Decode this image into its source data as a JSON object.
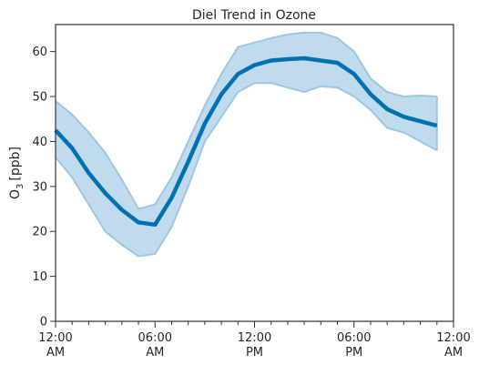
{
  "chart_data": {
    "type": "line",
    "title": "Diel Trend in Ozone",
    "ylabel": "O",
    "ylabel_sub": "3",
    "ylabel_unit": "[ppb]",
    "xlabel": "",
    "ylim": [
      0,
      66
    ],
    "xlim": [
      0,
      24
    ],
    "grid": false,
    "legend": "none",
    "yticks": [
      0,
      10,
      20,
      30,
      40,
      50,
      60
    ],
    "xticks": [
      {
        "x": 0,
        "line1": "12:00",
        "line2": "AM"
      },
      {
        "x": 6,
        "line1": "06:00",
        "line2": "AM"
      },
      {
        "x": 12,
        "line1": "12:00",
        "line2": "PM"
      },
      {
        "x": 18,
        "line1": "06:00",
        "line2": "PM"
      },
      {
        "x": 24,
        "line1": "12:00",
        "line2": "AM"
      }
    ],
    "minor_xticks": [
      1,
      2,
      3,
      4,
      5,
      7,
      8,
      9,
      10,
      11,
      13,
      14,
      15,
      16,
      17,
      19,
      20,
      21,
      22,
      23
    ],
    "x": [
      0,
      1,
      2,
      3,
      4,
      5,
      6,
      7,
      8,
      9,
      10,
      11,
      12,
      13,
      14,
      15,
      16,
      17,
      18,
      19,
      20,
      21,
      22,
      23
    ],
    "series": [
      {
        "values": [
          42.5,
          38.5,
          33.0,
          28.5,
          24.8,
          22.0,
          21.5,
          27.5,
          35.5,
          44.0,
          50.5,
          55.0,
          57.0,
          58.0,
          58.3,
          58.5,
          58.0,
          57.5,
          55.0,
          50.5,
          47.2,
          45.5,
          44.5,
          43.5
        ],
        "lower": [
          36.5,
          32.0,
          26.0,
          20.0,
          17.0,
          14.5,
          15.0,
          21.0,
          30.0,
          40.0,
          45.5,
          51.0,
          53.0,
          53.0,
          52.0,
          51.0,
          52.3,
          52.0,
          50.0,
          47.0,
          43.0,
          42.0,
          40.0,
          38.0
        ],
        "upper": [
          49.0,
          46.0,
          42.0,
          37.5,
          31.5,
          25.0,
          26.0,
          32.0,
          40.0,
          48.0,
          55.0,
          61.0,
          62.0,
          63.0,
          63.8,
          64.2,
          64.2,
          63.0,
          60.0,
          54.0,
          51.0,
          50.0,
          50.2,
          50.0
        ]
      }
    ],
    "colors": {
      "line": "#0072b2",
      "band_fill": "#c0dbee",
      "band_edge": "#9dc6e3",
      "axis": "#333333",
      "text": "#262626"
    }
  }
}
